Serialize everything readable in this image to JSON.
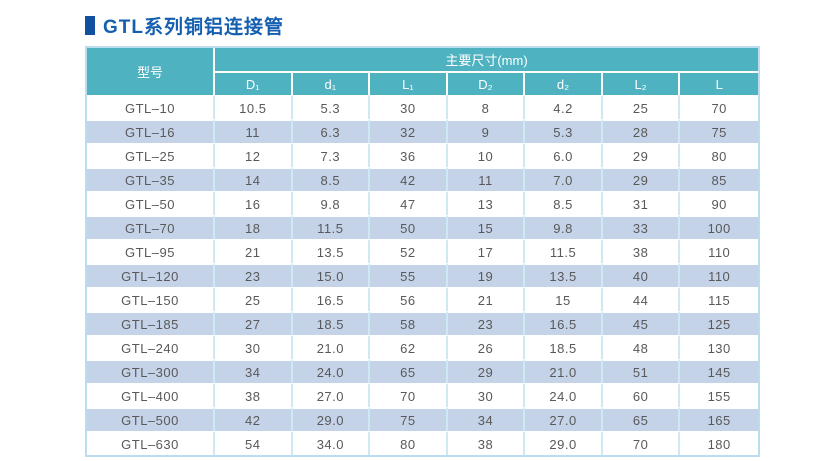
{
  "title": {
    "text": "GTL系列铜铝连接管"
  },
  "colors": {
    "title_blue": "#155fb0",
    "title_bullet": "#10509e",
    "header_teal": "#4fb2c0",
    "row_alt": "#c5d3e8",
    "grid_line": "#cfe9f3",
    "outer_border": "#bcdcf0",
    "text_gray": "#595959"
  },
  "table": {
    "model_header": "型号",
    "group_header": "主要尺寸(mm)",
    "sub_headers": [
      "D₁",
      "d₁",
      "L₁",
      "D₂",
      "d₂",
      "L₂",
      "L"
    ],
    "rows": [
      {
        "model": "GTL–10",
        "values": [
          "10.5",
          "5.3",
          "30",
          "8",
          "4.2",
          "25",
          "70"
        ]
      },
      {
        "model": "GTL–16",
        "values": [
          "11",
          "6.3",
          "32",
          "9",
          "5.3",
          "28",
          "75"
        ]
      },
      {
        "model": "GTL–25",
        "values": [
          "12",
          "7.3",
          "36",
          "10",
          "6.0",
          "29",
          "80"
        ]
      },
      {
        "model": "GTL–35",
        "values": [
          "14",
          "8.5",
          "42",
          "11",
          "7.0",
          "29",
          "85"
        ]
      },
      {
        "model": "GTL–50",
        "values": [
          "16",
          "9.8",
          "47",
          "13",
          "8.5",
          "31",
          "90"
        ]
      },
      {
        "model": "GTL–70",
        "values": [
          "18",
          "11.5",
          "50",
          "15",
          "9.8",
          "33",
          "100"
        ]
      },
      {
        "model": "GTL–95",
        "values": [
          "21",
          "13.5",
          "52",
          "17",
          "11.5",
          "38",
          "110"
        ]
      },
      {
        "model": "GTL–120",
        "values": [
          "23",
          "15.0",
          "55",
          "19",
          "13.5",
          "40",
          "110"
        ]
      },
      {
        "model": "GTL–150",
        "values": [
          "25",
          "16.5",
          "56",
          "21",
          "15",
          "44",
          "115"
        ]
      },
      {
        "model": "GTL–185",
        "values": [
          "27",
          "18.5",
          "58",
          "23",
          "16.5",
          "45",
          "125"
        ]
      },
      {
        "model": "GTL–240",
        "values": [
          "30",
          "21.0",
          "62",
          "26",
          "18.5",
          "48",
          "130"
        ]
      },
      {
        "model": "GTL–300",
        "values": [
          "34",
          "24.0",
          "65",
          "29",
          "21.0",
          "51",
          "145"
        ]
      },
      {
        "model": "GTL–400",
        "values": [
          "38",
          "27.0",
          "70",
          "30",
          "24.0",
          "60",
          "155"
        ]
      },
      {
        "model": "GTL–500",
        "values": [
          "42",
          "29.0",
          "75",
          "34",
          "27.0",
          "65",
          "165"
        ]
      },
      {
        "model": "GTL–630",
        "values": [
          "54",
          "34.0",
          "80",
          "38",
          "29.0",
          "70",
          "180"
        ]
      }
    ]
  }
}
